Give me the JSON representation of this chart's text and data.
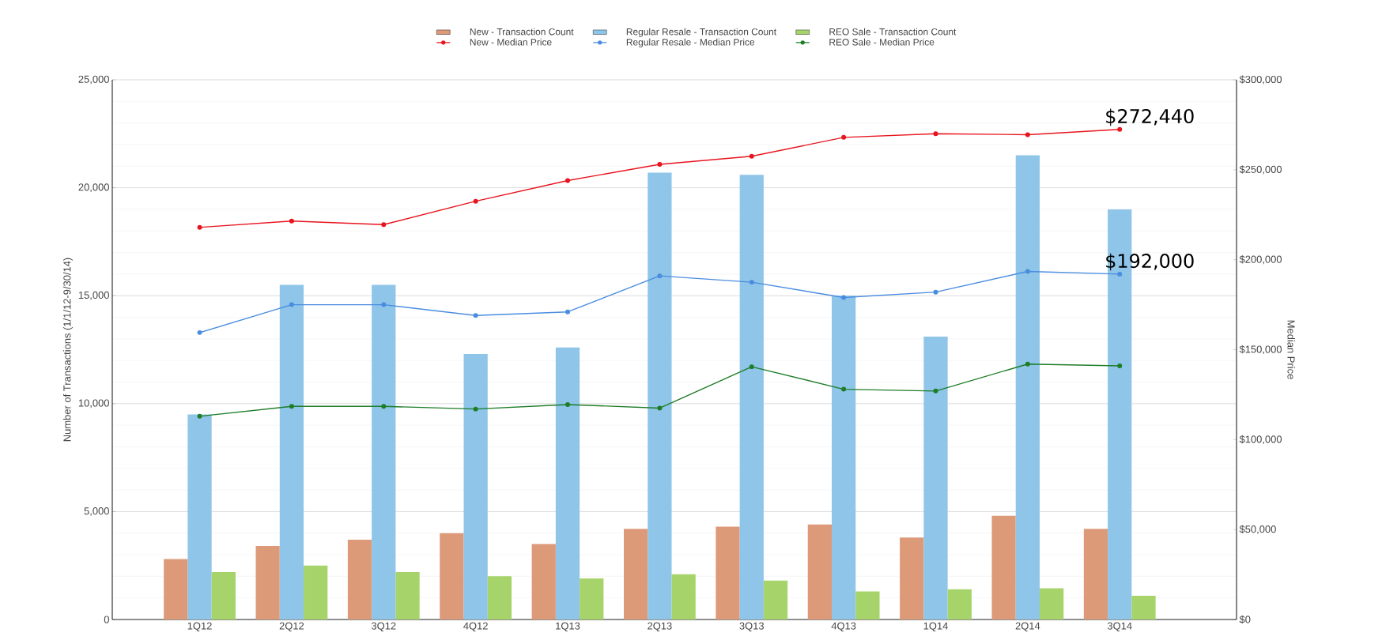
{
  "chart_data": {
    "type": "bar",
    "ylabel": "Number of Transactions  (1/1/12-9/30/14)",
    "y2label": "Median Price",
    "categories": [
      "1Q12",
      "2Q12",
      "3Q12",
      "4Q12",
      "1Q13",
      "2Q13",
      "3Q13",
      "4Q13",
      "1Q14",
      "2Q14",
      "3Q14"
    ],
    "series": [
      {
        "name": "New - Transaction Count",
        "color": "#dc9a78",
        "values": [
          2800,
          3400,
          3700,
          4000,
          3500,
          4200,
          4300,
          4400,
          3800,
          4800,
          4200
        ]
      },
      {
        "name": "Regular Resale - Transaction Count",
        "color": "#8ec5e8",
        "values": [
          9500,
          15500,
          15500,
          12300,
          12600,
          20700,
          20600,
          15000,
          13100,
          21500,
          19000
        ]
      },
      {
        "name": "REO Sale - Transaction Count",
        "color": "#a6d36a",
        "values": [
          2200,
          2500,
          2200,
          2000,
          1900,
          2100,
          1800,
          1300,
          1400,
          1450,
          1100
        ]
      },
      {
        "name": "New - Median Price",
        "type": "line",
        "axis": "y2",
        "color": "#e8141e",
        "values": [
          218000,
          221500,
          219500,
          232500,
          244000,
          253000,
          257500,
          268000,
          270000,
          269500,
          272440
        ]
      },
      {
        "name": "Regular Resale - Median Price",
        "type": "line",
        "axis": "y2",
        "color": "#4a8de0",
        "values": [
          159500,
          175000,
          175000,
          169000,
          171000,
          191000,
          187500,
          179000,
          182000,
          193500,
          192000
        ]
      },
      {
        "name": "REO Sale - Median Price",
        "type": "line",
        "axis": "y2",
        "color": "#1e7d28",
        "values": [
          113000,
          118500,
          118500,
          117000,
          119500,
          117500,
          140500,
          128000,
          127000,
          142000,
          141000
        ]
      }
    ],
    "ylim": [
      0,
      25000
    ],
    "yticks": [
      {
        "value": 0,
        "label": "0"
      },
      {
        "value": 5000,
        "label": "5,000"
      },
      {
        "value": 10000,
        "label": "10,000"
      },
      {
        "value": 15000,
        "label": "15,000"
      },
      {
        "value": 20000,
        "label": "20,000"
      },
      {
        "value": 25000,
        "label": "25,000"
      }
    ],
    "y2lim": [
      0,
      300000
    ],
    "y2ticks": [
      {
        "value": 0,
        "label": "$0"
      },
      {
        "value": 50000,
        "label": "$50,000"
      },
      {
        "value": 100000,
        "label": "$100,000"
      },
      {
        "value": 150000,
        "label": "$150,000"
      },
      {
        "value": 200000,
        "label": "$200,000"
      },
      {
        "value": 250000,
        "label": "$250,000"
      },
      {
        "value": 300000,
        "label": "$300,000"
      }
    ],
    "annotations": [
      "$272,440",
      "$192,000"
    ],
    "grid": "y",
    "legend": "top",
    "marker": "circle",
    "line_style": "solid"
  }
}
